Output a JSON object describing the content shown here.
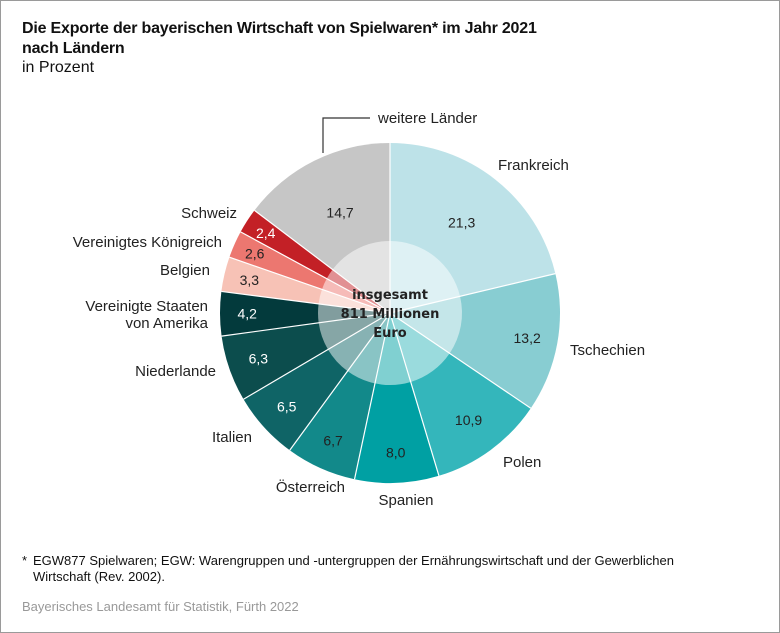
{
  "title_line1": "Die Exporte der bayerischen Wirtschaft von Spielwaren* im Jahr 2021",
  "title_line2": "nach Ländern",
  "subtitle": "in Prozent",
  "footnote_star": "*",
  "footnote": "EGW877 Spielwaren; EGW: Warengruppen und -untergruppen der Ernährungswirtschaft und der Gewerblichen Wirtschaft (Rev. 2002).",
  "source": "Bayerisches Landesamt für Statistik, Fürth 2022",
  "chart_data": {
    "type": "pie",
    "variant": "donut-with-lighter-inner-ring",
    "title": "Die Exporte der bayerischen Wirtschaft von Spielwaren* im Jahr 2021 nach Ländern",
    "unit": "in Prozent",
    "center_label": [
      "insgesamt",
      "811 Millionen",
      "Euro"
    ],
    "direction": "clockwise from top",
    "slices": [
      {
        "label": "Frankreich",
        "value": 21.3,
        "display": "21,3",
        "color": "#bde2e8",
        "text_color": "#222222"
      },
      {
        "label": "Tschechien",
        "value": 13.2,
        "display": "13,2",
        "color": "#88cdd2",
        "text_color": "#222222"
      },
      {
        "label": "Polen",
        "value": 10.9,
        "display": "10,9",
        "color": "#34b6bb",
        "text_color": "#222222"
      },
      {
        "label": "Spanien",
        "value": 8.0,
        "display": "8,0",
        "color": "#00a0a3",
        "text_color": "#222222"
      },
      {
        "label": "Österreich",
        "value": 6.7,
        "display": "6,7",
        "color": "#12898a",
        "text_color": "#222222"
      },
      {
        "label": "Italien",
        "value": 6.5,
        "display": "6,5",
        "color": "#0f6466",
        "text_color": "#ffffff"
      },
      {
        "label": "Niederlande",
        "value": 6.3,
        "display": "6,3",
        "color": "#0c4d4d",
        "text_color": "#ffffff"
      },
      {
        "label": "Vereinigte Staaten von Amerika",
        "label_lines": [
          "Vereinigte Staaten",
          "von Amerika"
        ],
        "value": 4.2,
        "display": "4,2",
        "color": "#033a3c",
        "text_color": "#ffffff"
      },
      {
        "label": "Belgien",
        "value": 3.3,
        "display": "3,3",
        "color": "#f7c2b6",
        "text_color": "#222222"
      },
      {
        "label": "Vereinigtes Königreich",
        "value": 2.6,
        "display": "2,6",
        "color": "#ec7770",
        "text_color": "#222222"
      },
      {
        "label": "Schweiz",
        "value": 2.4,
        "display": "2,4",
        "color": "#c32026",
        "text_color": "#ffffff"
      },
      {
        "label": "weitere Länder",
        "value": 14.7,
        "display": "14,7",
        "color": "#c6c6c6",
        "text_color": "#222222"
      }
    ]
  }
}
